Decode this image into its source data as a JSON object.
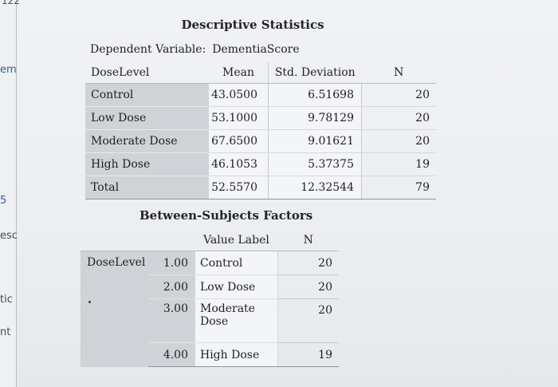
{
  "fragments": {
    "top": "122",
    "a": "em",
    "b": "5",
    "c": "esc",
    "d": "tic",
    "e": "nt"
  },
  "descriptive": {
    "title": "Descriptive Statistics",
    "dependent_label": "Dependent Variable:",
    "dependent_value": "DementiaScore",
    "headers": [
      "DoseLevel",
      "Mean",
      "Std. Deviation",
      "N"
    ],
    "rows": [
      {
        "label": "Control",
        "mean": "43.0500",
        "sd": "6.51698",
        "n": "20"
      },
      {
        "label": "Low Dose",
        "mean": "53.1000",
        "sd": "9.78129",
        "n": "20"
      },
      {
        "label": "Moderate Dose",
        "mean": "67.6500",
        "sd": "9.01621",
        "n": "20"
      },
      {
        "label": "High Dose",
        "mean": "46.1053",
        "sd": "5.37375",
        "n": "19"
      },
      {
        "label": "Total",
        "mean": "52.5570",
        "sd": "12.32544",
        "n": "79"
      }
    ]
  },
  "between": {
    "title": "Between-Subjects Factors",
    "headers": [
      "Value Label",
      "N"
    ],
    "factor": "DoseLevel",
    "rows": [
      {
        "code": "1.00",
        "label": "Control",
        "n": "20"
      },
      {
        "code": "2.00",
        "label": "Low Dose",
        "n": "20"
      },
      {
        "code": "3.00",
        "label_line1": "Moderate",
        "label_line2": "Dose",
        "n": "20"
      },
      {
        "code": "4.00",
        "label": "High Dose",
        "n": "19"
      }
    ]
  }
}
